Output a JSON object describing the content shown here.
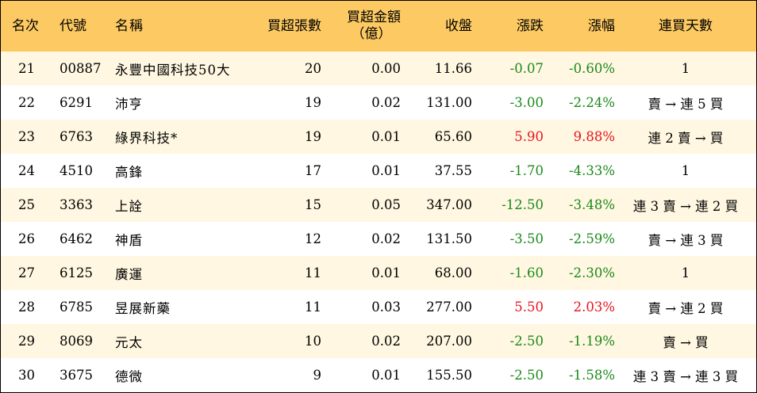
{
  "colors": {
    "header_bg": "#fcc962",
    "stripe_bg": "#fff7e1",
    "up": "#e8131b",
    "down": "#1a8a1a"
  },
  "headers": {
    "rank": "名次",
    "code": "代號",
    "name": "名稱",
    "buy_lots": "買超張數",
    "buy_amount_line1": "買超金額",
    "buy_amount_line2": "（億）",
    "close": "收盤",
    "change": "漲跌",
    "change_pct": "漲幅",
    "streak": "連買天數"
  },
  "rows": [
    {
      "rank": "21",
      "code": "00887",
      "name": "永豐中國科技50大",
      "buy_lots": "20",
      "buy_amount": "0.00",
      "close": "11.66",
      "change": "-0.07",
      "change_pct": "-0.60%",
      "streak": "1",
      "direction": "down"
    },
    {
      "rank": "22",
      "code": "6291",
      "name": "沛亨",
      "buy_lots": "19",
      "buy_amount": "0.02",
      "close": "131.00",
      "change": "-3.00",
      "change_pct": "-2.24%",
      "streak": "賣 → 連 5 買",
      "direction": "down"
    },
    {
      "rank": "23",
      "code": "6763",
      "name": "綠界科技*",
      "buy_lots": "19",
      "buy_amount": "0.01",
      "close": "65.60",
      "change": "5.90",
      "change_pct": "9.88%",
      "streak": "連 2 賣 → 買",
      "direction": "up"
    },
    {
      "rank": "24",
      "code": "4510",
      "name": "高鋒",
      "buy_lots": "17",
      "buy_amount": "0.01",
      "close": "37.55",
      "change": "-1.70",
      "change_pct": "-4.33%",
      "streak": "1",
      "direction": "down"
    },
    {
      "rank": "25",
      "code": "3363",
      "name": "上詮",
      "buy_lots": "15",
      "buy_amount": "0.05",
      "close": "347.00",
      "change": "-12.50",
      "change_pct": "-3.48%",
      "streak": "連 3 賣 → 連 2 買",
      "direction": "down"
    },
    {
      "rank": "26",
      "code": "6462",
      "name": "神盾",
      "buy_lots": "12",
      "buy_amount": "0.02",
      "close": "131.50",
      "change": "-3.50",
      "change_pct": "-2.59%",
      "streak": "賣 → 連 3 買",
      "direction": "down"
    },
    {
      "rank": "27",
      "code": "6125",
      "name": "廣運",
      "buy_lots": "11",
      "buy_amount": "0.01",
      "close": "68.00",
      "change": "-1.60",
      "change_pct": "-2.30%",
      "streak": "1",
      "direction": "down"
    },
    {
      "rank": "28",
      "code": "6785",
      "name": "昱展新藥",
      "buy_lots": "11",
      "buy_amount": "0.03",
      "close": "277.00",
      "change": "5.50",
      "change_pct": "2.03%",
      "streak": "賣 → 連 2 買",
      "direction": "up"
    },
    {
      "rank": "29",
      "code": "8069",
      "name": "元太",
      "buy_lots": "10",
      "buy_amount": "0.02",
      "close": "207.00",
      "change": "-2.50",
      "change_pct": "-1.19%",
      "streak": "賣 → 買",
      "direction": "down"
    },
    {
      "rank": "30",
      "code": "3675",
      "name": "德微",
      "buy_lots": "9",
      "buy_amount": "0.01",
      "close": "155.50",
      "change": "-2.50",
      "change_pct": "-1.58%",
      "streak": "連 3 賣 → 連 3 買",
      "direction": "down"
    }
  ]
}
